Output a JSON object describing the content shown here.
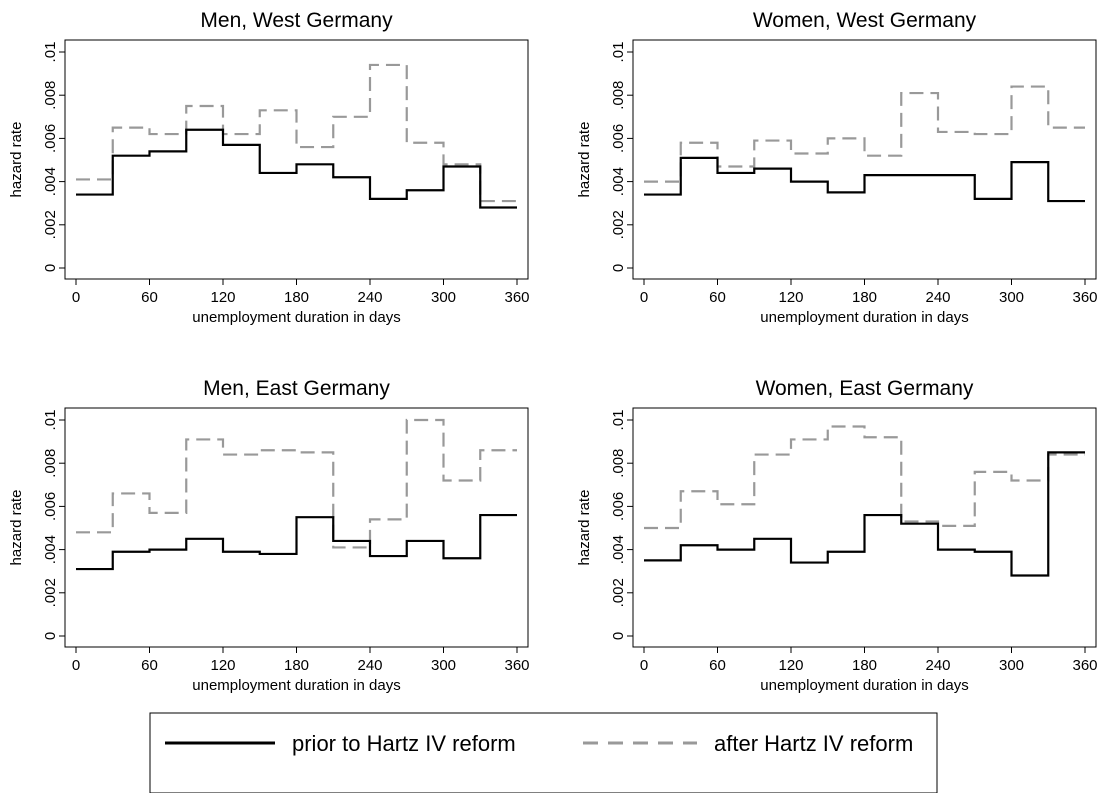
{
  "chart_data": [
    {
      "type": "line",
      "title": "Men, West Germany",
      "xlabel": "unemployment duration in days",
      "ylabel": "hazard rate",
      "xlim": [
        0,
        360
      ],
      "ylim": [
        0,
        0.01
      ],
      "x_ticks": [
        "0",
        "60",
        "120",
        "180",
        "240",
        "300",
        "360"
      ],
      "y_ticks": [
        "0",
        ".002",
        ".004",
        ".006",
        ".008",
        ".01"
      ],
      "step": true,
      "x": [
        0,
        30,
        60,
        90,
        120,
        150,
        180,
        210,
        240,
        270,
        300,
        330,
        360
      ],
      "series": [
        {
          "name": "prior to Hartz IV reform",
          "values": [
            0.0034,
            0.0052,
            0.0054,
            0.0064,
            0.0057,
            0.0044,
            0.0048,
            0.0042,
            0.0032,
            0.0036,
            0.0047,
            0.0028,
            0.0028
          ]
        },
        {
          "name": "after Hartz IV reform",
          "values": [
            0.0041,
            0.0065,
            0.0062,
            0.0075,
            0.0062,
            0.0073,
            0.0056,
            0.007,
            0.0094,
            0.0058,
            0.0048,
            0.0031,
            0.0031
          ]
        }
      ]
    },
    {
      "type": "line",
      "title": "Women, West Germany",
      "xlabel": "unemployment duration in days",
      "ylabel": "hazard rate",
      "xlim": [
        0,
        360
      ],
      "ylim": [
        0,
        0.01
      ],
      "x_ticks": [
        "0",
        "60",
        "120",
        "180",
        "240",
        "300",
        "360"
      ],
      "y_ticks": [
        "0",
        ".002",
        ".004",
        ".006",
        ".008",
        ".01"
      ],
      "step": true,
      "x": [
        0,
        30,
        60,
        90,
        120,
        150,
        180,
        210,
        240,
        270,
        300,
        330,
        360
      ],
      "series": [
        {
          "name": "prior to Hartz IV reform",
          "values": [
            0.0034,
            0.0051,
            0.0044,
            0.0046,
            0.004,
            0.0035,
            0.0043,
            0.0043,
            0.0043,
            0.0032,
            0.0049,
            0.0031,
            0.0031
          ]
        },
        {
          "name": "after Hartz IV reform",
          "values": [
            0.004,
            0.0058,
            0.0047,
            0.0059,
            0.0053,
            0.006,
            0.0052,
            0.0081,
            0.0063,
            0.0062,
            0.0084,
            0.0065,
            0.0065
          ]
        }
      ]
    },
    {
      "type": "line",
      "title": "Men, East Germany",
      "xlabel": "unemployment duration in days",
      "ylabel": "hazard rate",
      "xlim": [
        0,
        360
      ],
      "ylim": [
        0,
        0.01
      ],
      "x_ticks": [
        "0",
        "60",
        "120",
        "180",
        "240",
        "300",
        "360"
      ],
      "y_ticks": [
        "0",
        ".002",
        ".004",
        ".006",
        ".008",
        ".01"
      ],
      "step": true,
      "x": [
        0,
        30,
        60,
        90,
        120,
        150,
        180,
        210,
        240,
        270,
        300,
        330,
        360
      ],
      "series": [
        {
          "name": "prior to Hartz IV reform",
          "values": [
            0.0031,
            0.0039,
            0.004,
            0.0045,
            0.0039,
            0.0038,
            0.0055,
            0.0044,
            0.0037,
            0.0044,
            0.0036,
            0.0056,
            0.0056
          ]
        },
        {
          "name": "after Hartz IV reform",
          "values": [
            0.0048,
            0.0066,
            0.0057,
            0.0091,
            0.0084,
            0.0086,
            0.0085,
            0.0041,
            0.0054,
            0.01,
            0.0072,
            0.0086,
            0.0086
          ]
        }
      ]
    },
    {
      "type": "line",
      "title": "Women, East Germany",
      "xlabel": "unemployment duration in days",
      "ylabel": "hazard rate",
      "xlim": [
        0,
        360
      ],
      "ylim": [
        0,
        0.01
      ],
      "x_ticks": [
        "0",
        "60",
        "120",
        "180",
        "240",
        "300",
        "360"
      ],
      "y_ticks": [
        "0",
        ".002",
        ".004",
        ".006",
        ".008",
        ".01"
      ],
      "step": true,
      "x": [
        0,
        30,
        60,
        90,
        120,
        150,
        180,
        210,
        240,
        270,
        300,
        330,
        360
      ],
      "series": [
        {
          "name": "prior to Hartz IV reform",
          "values": [
            0.0035,
            0.0042,
            0.004,
            0.0045,
            0.0034,
            0.0039,
            0.0056,
            0.0052,
            0.004,
            0.0039,
            0.0028,
            0.0085,
            0.0085
          ]
        },
        {
          "name": "after Hartz IV reform",
          "values": [
            0.005,
            0.0067,
            0.0061,
            0.0084,
            0.0091,
            0.0097,
            0.0092,
            0.0053,
            0.0051,
            0.0076,
            0.0072,
            0.0084,
            0.0084
          ]
        }
      ]
    }
  ],
  "legend": {
    "placement": "bottom",
    "items": [
      {
        "label": "prior to Hartz IV reform",
        "color": "#000000",
        "dash": "solid"
      },
      {
        "label": "after Hartz IV reform",
        "color": "#999999",
        "dash": "dashed"
      }
    ]
  },
  "colors": {
    "prior": "#000000",
    "after": "#999999"
  }
}
